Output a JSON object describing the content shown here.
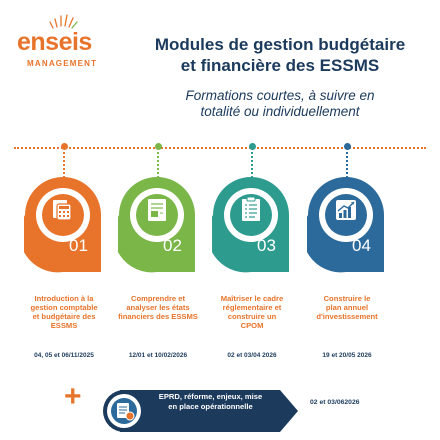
{
  "logo": {
    "name": "enseis",
    "subtitle": "MANAGEMENT"
  },
  "header": {
    "title_line1": "Modules de gestion budgétaire",
    "title_line2": "et financière des ESSMS",
    "subtitle_line1": "Formations courtes, à suivre en",
    "subtitle_line2": "totalité ou individuellement"
  },
  "colors": {
    "orange": "#e8732a",
    "module1": "#e8732a",
    "module2": "#7ab648",
    "module3": "#2e9b8f",
    "module4": "#2b6a9a",
    "navy": "#1b3a5c"
  },
  "modules": [
    {
      "number": "01",
      "icon": "calculator-document-icon",
      "title": [
        "Introduction à la",
        "gestion comptable",
        "et budgétaire des",
        "ESSMS"
      ],
      "dates": "04, 05 et 06/11/2025"
    },
    {
      "number": "02",
      "icon": "report-document-icon",
      "title": [
        "Comprendre et",
        "analyser les états",
        "financiers des ESSMS"
      ],
      "dates": "12/01 et 10/02/2026"
    },
    {
      "number": "03",
      "icon": "checklist-clipboard-icon",
      "title": [
        "Maîtriser le cadre",
        "réglementaire et",
        "construire un",
        "CPOM"
      ],
      "dates": "02 et 03/04 2026"
    },
    {
      "number": "04",
      "icon": "growth-chart-icon",
      "title": [
        "Construire le",
        "plan annuel",
        "d'investissement"
      ],
      "dates": "19 et 20/05 2026"
    }
  ],
  "extra": {
    "plus": "+",
    "icon": "budget-document-icon",
    "text_line1": "EPRD, réforme, enjeux, mise",
    "text_line2": "en place opérationnelle",
    "dates": "02 et 03/062026"
  }
}
